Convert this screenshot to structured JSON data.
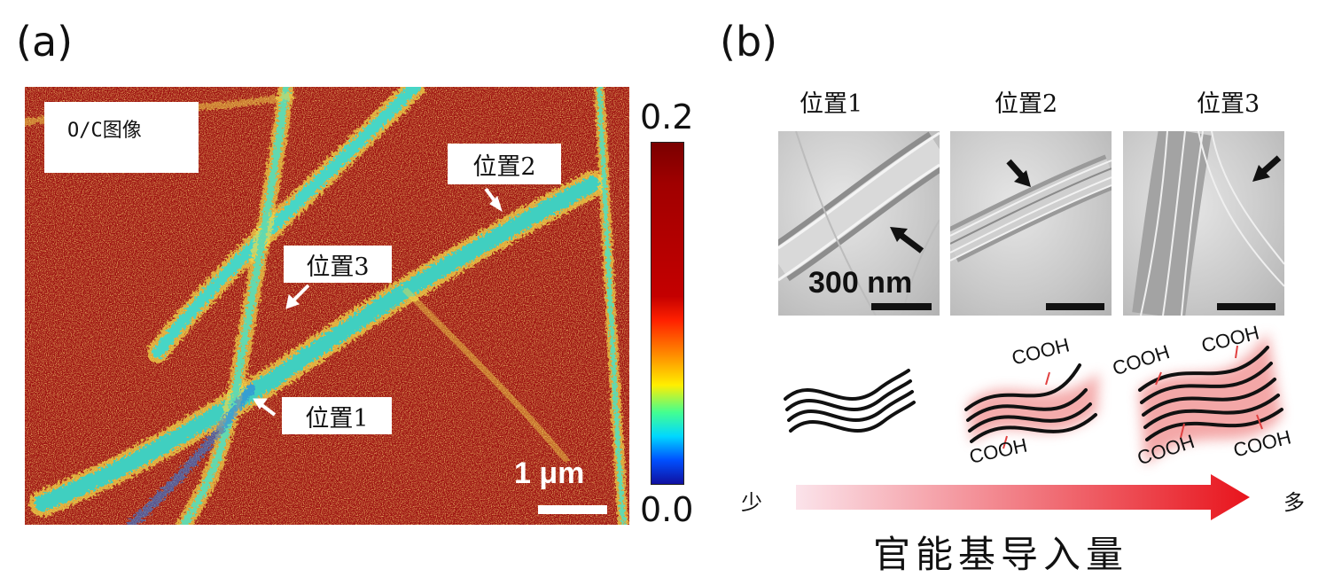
{
  "panel_a": {
    "label": "(a)",
    "image_label": "O/C图像",
    "position_labels": [
      "位置1",
      "位置2",
      "位置3"
    ],
    "scale_bar": "1 μm",
    "colorbar": {
      "max": "0.2",
      "min": "0.0"
    }
  },
  "panel_b": {
    "label": "(b)",
    "positions": [
      "位置1",
      "位置2",
      "位置3"
    ],
    "tem_scale_bar": "300 nm",
    "group_label": "COOH",
    "axis": {
      "low": "少",
      "high": "多",
      "title": "官能基导入量"
    }
  },
  "colors": {
    "map_background": "#9c1010",
    "fiber_main": "#3fcfc0",
    "fiber_edge": "#f2d84a",
    "arrow_gradient_start": "#fbe3ea",
    "arrow_gradient_end": "#e8141c",
    "glow": "#f08a8a"
  }
}
